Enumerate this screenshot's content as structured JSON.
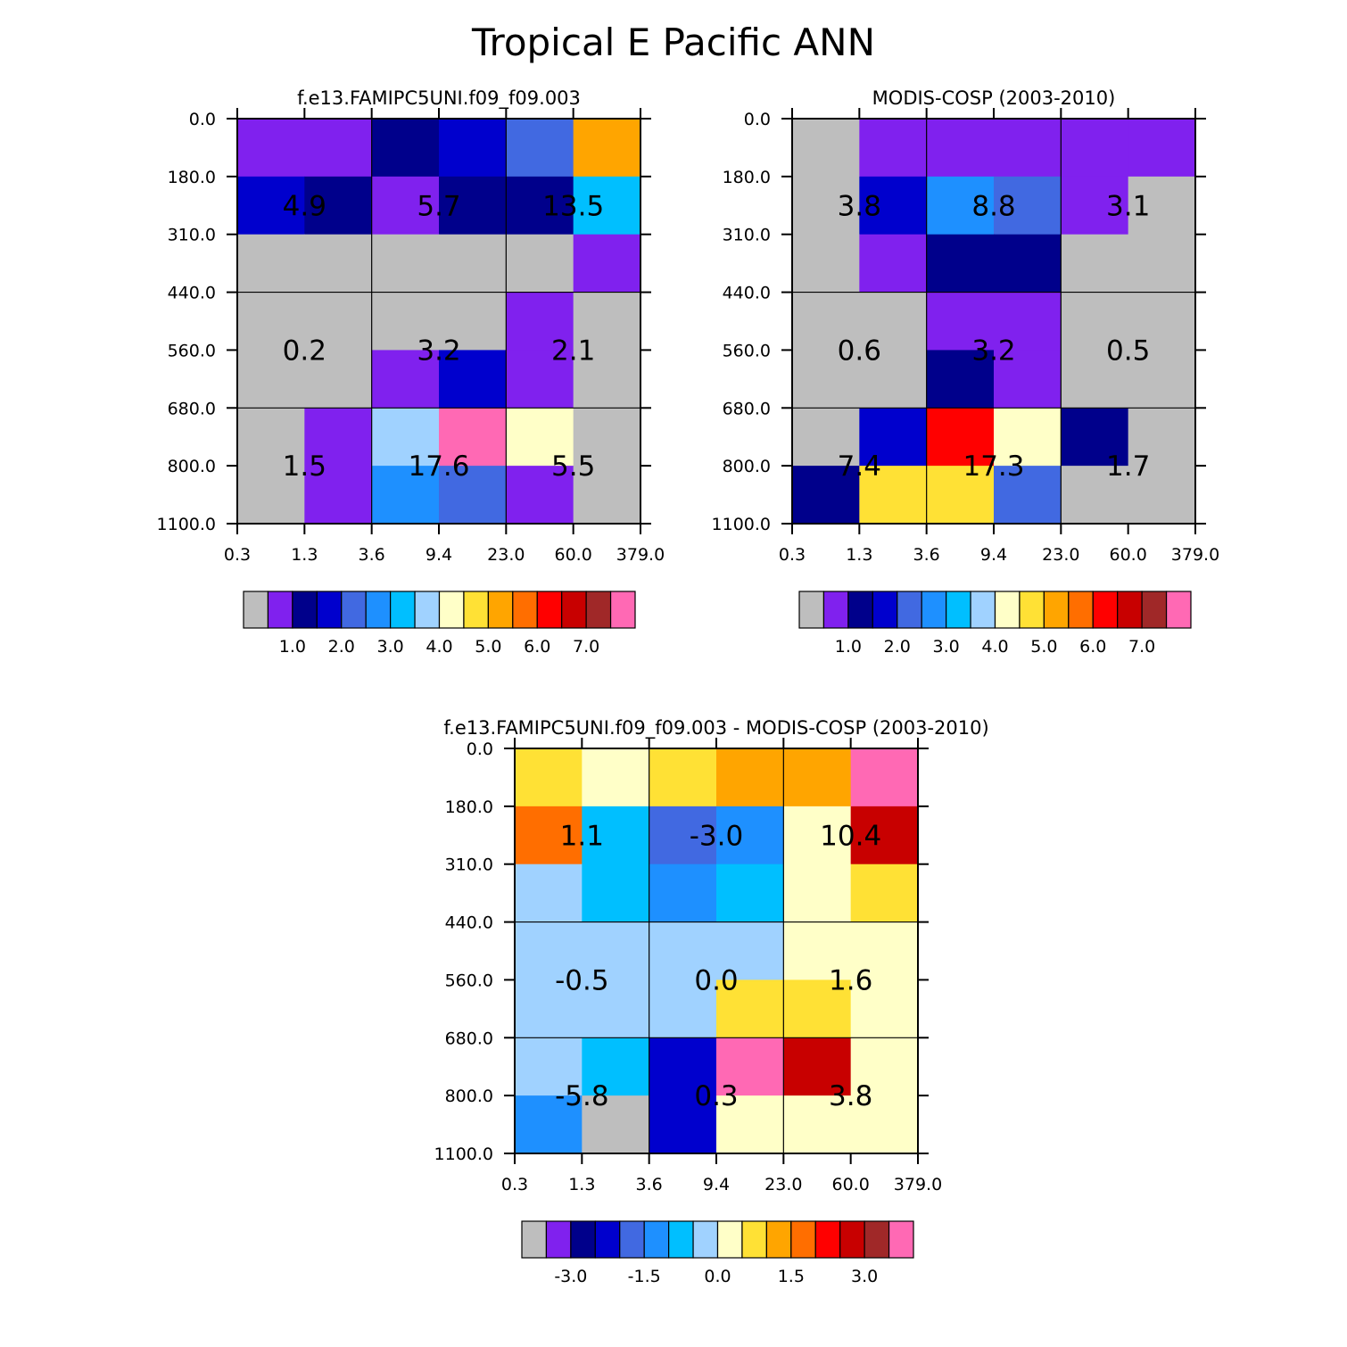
{
  "title": "Tropical E Pacific ANN",
  "x_ticks": [
    "0.3",
    "1.3",
    "3.6",
    "9.4",
    "23.0",
    "60.0",
    "379.0"
  ],
  "y_ticks": [
    "0.0",
    "180.0",
    "310.0",
    "440.0",
    "560.0",
    "680.0",
    "800.0",
    "1100.0"
  ],
  "palette": [
    "#bebebe",
    "#8021ee",
    "#00008b",
    "#0000cd",
    "#4169e1",
    "#1e90ff",
    "#00bfff",
    "#a0d2ff",
    "#ffffc8",
    "#ffe135",
    "#ffa500",
    "#ff6e00",
    "#ff0000",
    "#c80000",
    "#a02828",
    "#ff69b4"
  ],
  "colorbar_labels": {
    "model": [
      "1.0",
      "2.0",
      "3.0",
      "4.0",
      "5.0",
      "6.0",
      "7.0"
    ],
    "obs": [
      "1.0",
      "2.0",
      "3.0",
      "4.0",
      "5.0",
      "6.0",
      "7.0"
    ],
    "diff": [
      "-3.0",
      "-1.5",
      "0.0",
      "1.5",
      "3.0"
    ]
  },
  "chart_data": [
    {
      "type": "heatmap",
      "title": "f.e13.FAMIPC5UNI.f09_f09.003",
      "x_bins": [
        "0.3",
        "1.3",
        "3.6",
        "9.4",
        "23.0",
        "60.0",
        "379.0"
      ],
      "y_bins": [
        "0.0",
        "180.0",
        "310.0",
        "440.0",
        "560.0",
        "680.0",
        "800.0",
        "1100.0"
      ],
      "cell_color_index": [
        [
          1,
          1,
          2,
          3,
          4,
          10
        ],
        [
          3,
          2,
          1,
          2,
          2,
          6
        ],
        [
          0,
          0,
          0,
          0,
          0,
          1
        ],
        [
          0,
          0,
          0,
          0,
          1,
          0
        ],
        [
          0,
          0,
          1,
          3,
          1,
          0
        ],
        [
          0,
          1,
          7,
          15,
          8,
          0
        ],
        [
          0,
          1,
          5,
          4,
          1,
          0
        ]
      ],
      "box_totals": [
        [
          "4.9",
          "5.7",
          "13.5"
        ],
        [
          "0.2",
          "3.2",
          "2.1"
        ],
        [
          "1.5",
          "17.6",
          "5.5"
        ]
      ]
    },
    {
      "type": "heatmap",
      "title": "MODIS-COSP (2003-2010)",
      "x_bins": [
        "0.3",
        "1.3",
        "3.6",
        "9.4",
        "23.0",
        "60.0",
        "379.0"
      ],
      "y_bins": [
        "0.0",
        "180.0",
        "310.0",
        "440.0",
        "560.0",
        "680.0",
        "800.0",
        "1100.0"
      ],
      "cell_color_index": [
        [
          0,
          1,
          1,
          1,
          1,
          1
        ],
        [
          0,
          3,
          5,
          4,
          1,
          0
        ],
        [
          0,
          1,
          2,
          2,
          0,
          0
        ],
        [
          0,
          0,
          1,
          1,
          0,
          0
        ],
        [
          0,
          0,
          2,
          1,
          0,
          0
        ],
        [
          0,
          3,
          12,
          8,
          2,
          0
        ],
        [
          2,
          9,
          9,
          4,
          0,
          0
        ]
      ],
      "box_totals": [
        [
          "3.8",
          "8.8",
          "3.1"
        ],
        [
          "0.6",
          "3.2",
          "0.5"
        ],
        [
          "7.4",
          "17.3",
          "1.7"
        ]
      ]
    },
    {
      "type": "heatmap",
      "title": "f.e13.FAMIPC5UNI.f09_f09.003 - MODIS-COSP (2003-2010)",
      "x_bins": [
        "0.3",
        "1.3",
        "3.6",
        "9.4",
        "23.0",
        "60.0",
        "379.0"
      ],
      "y_bins": [
        "0.0",
        "180.0",
        "310.0",
        "440.0",
        "560.0",
        "680.0",
        "800.0",
        "1100.0"
      ],
      "cell_color_index": [
        [
          9,
          8,
          9,
          10,
          10,
          15
        ],
        [
          11,
          6,
          4,
          5,
          8,
          13
        ],
        [
          7,
          6,
          5,
          6,
          8,
          9
        ],
        [
          7,
          7,
          7,
          7,
          8,
          8
        ],
        [
          7,
          7,
          7,
          9,
          9,
          8
        ],
        [
          7,
          6,
          3,
          15,
          13,
          8
        ],
        [
          5,
          0,
          3,
          8,
          8,
          8
        ]
      ],
      "box_totals": [
        [
          "1.1",
          "-3.0",
          "10.4"
        ],
        [
          "-0.5",
          "0.0",
          "1.6"
        ],
        [
          "-5.8",
          "0.3",
          "3.8"
        ]
      ]
    }
  ]
}
